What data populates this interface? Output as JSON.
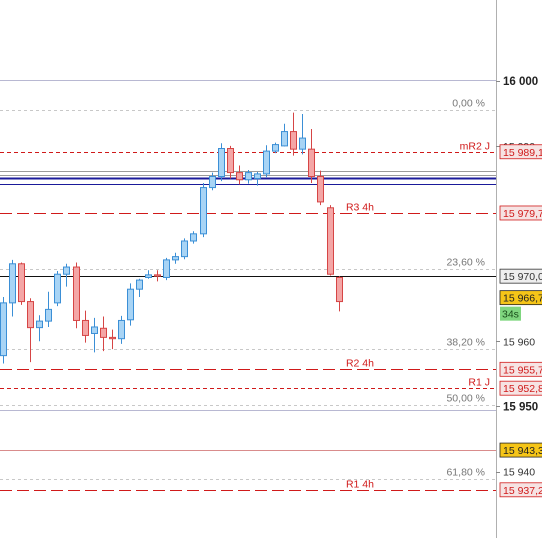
{
  "chart_data": {
    "type": "candlestick",
    "ylim": [
      15929.8,
      16012.4
    ],
    "y_ticks": [
      {
        "value": 16000,
        "label": "16 000",
        "major": true
      },
      {
        "value": 15990,
        "label": "15 990",
        "major": false
      },
      {
        "value": 15960,
        "label": "15 960",
        "major": false
      },
      {
        "value": 15950,
        "label": "15 950",
        "major": true
      },
      {
        "value": 15940,
        "label": "15 940",
        "major": false
      }
    ],
    "price_tags": [
      {
        "value": 15989.1,
        "label": "15 989,1",
        "color": "#d01a1a",
        "bg": "#f6e3e3"
      },
      {
        "value": 15979.7,
        "label": "15 979,7",
        "color": "#d01a1a",
        "bg": "#f6e3e3"
      },
      {
        "value": 15970.0,
        "label": "15 970,0",
        "color": "#333333",
        "bg": "#eeeeee"
      },
      {
        "value": 15966.7,
        "label": "15 966,7",
        "color": "#222222",
        "bg": "#f5c518"
      },
      {
        "value": 15955.7,
        "label": "15 955,7",
        "color": "#d01a1a",
        "bg": "#f6e3e3"
      },
      {
        "value": 15952.8,
        "label": "15 952,8",
        "color": "#d01a1a",
        "bg": "#f6e3e3"
      },
      {
        "value": 15943.3,
        "label": "15 943,3",
        "color": "#222222",
        "bg": "#f5c518"
      },
      {
        "value": 15937.2,
        "label": "15 937,2",
        "color": "#d01a1a",
        "bg": "#f6e3e3"
      }
    ],
    "countdown": {
      "label": "34s"
    },
    "fib_levels": [
      {
        "label": "0,00 %",
        "value": 15995.5
      },
      {
        "label": "23,60 %",
        "value": 15971.1
      },
      {
        "label": "38,20 %",
        "value": 15958.8
      },
      {
        "label": "50,00 %",
        "value": 15950.2
      },
      {
        "label": "61,80 %",
        "value": 15938.8
      }
    ],
    "pivot_levels": [
      {
        "label": "mR2 J",
        "value": 15989.1
      },
      {
        "label": "R3 4h",
        "value": 15979.7
      },
      {
        "label": "R2 4h",
        "value": 15955.7
      },
      {
        "label": "R1 J",
        "value": 15952.8
      },
      {
        "label": "R1 4h",
        "value": 15937.2
      }
    ],
    "horizontal_lines": [
      {
        "name": "grey-line-upper",
        "value": 16000.1,
        "color": "#b8b8d2"
      },
      {
        "name": "grey-double-1",
        "value": 15986.1,
        "color": "#9a9a9a"
      },
      {
        "name": "grey-double-2",
        "value": 15985.6,
        "color": "#9a9a9a"
      },
      {
        "name": "navy-line",
        "value": 15985.1,
        "color": "#1a1a9a"
      },
      {
        "name": "navy-thin-line",
        "value": 15984.1,
        "color": "#1a1a9a"
      },
      {
        "name": "black-line",
        "value": 15970.0,
        "color": "#111111"
      },
      {
        "name": "grey-line-lower",
        "value": 15949.5,
        "color": "#b8b8d2"
      },
      {
        "name": "red-solid-line",
        "value": 15943.3,
        "color": "#d98c8c"
      }
    ],
    "candles": [
      {
        "o": 15957.8,
        "h": 15966.8,
        "l": 15956.6,
        "c": 15965.9
      },
      {
        "o": 15965.9,
        "h": 15972.5,
        "l": 15963.8,
        "c": 15971.9
      },
      {
        "o": 15971.9,
        "h": 15972.1,
        "l": 15965.6,
        "c": 15966.1
      },
      {
        "o": 15966.1,
        "h": 15966.6,
        "l": 15956.8,
        "c": 15962.1
      },
      {
        "o": 15962.1,
        "h": 15964.0,
        "l": 15960.0,
        "c": 15963.1
      },
      {
        "o": 15963.1,
        "h": 15967.6,
        "l": 15962.2,
        "c": 15964.9
      },
      {
        "o": 15965.9,
        "h": 15970.8,
        "l": 15965.4,
        "c": 15970.3
      },
      {
        "o": 15970.3,
        "h": 15971.9,
        "l": 15968.4,
        "c": 15971.4
      },
      {
        "o": 15971.4,
        "h": 15972.1,
        "l": 15962.0,
        "c": 15963.2
      },
      {
        "o": 15963.2,
        "h": 15964.7,
        "l": 15959.8,
        "c": 15960.9
      },
      {
        "o": 15961.2,
        "h": 15963.6,
        "l": 15958.3,
        "c": 15962.2
      },
      {
        "o": 15962.0,
        "h": 15963.8,
        "l": 15958.5,
        "c": 15960.6
      },
      {
        "o": 15960.6,
        "h": 15961.8,
        "l": 15958.8,
        "c": 15960.4
      },
      {
        "o": 15960.4,
        "h": 15963.9,
        "l": 15959.6,
        "c": 15963.2
      },
      {
        "o": 15963.3,
        "h": 15968.9,
        "l": 15962.4,
        "c": 15968.0
      },
      {
        "o": 15968.0,
        "h": 15969.6,
        "l": 15966.8,
        "c": 15969.4
      },
      {
        "o": 15969.8,
        "h": 15970.9,
        "l": 15969.6,
        "c": 15970.2
      },
      {
        "o": 15970.2,
        "h": 15970.9,
        "l": 15969.2,
        "c": 15970.0
      },
      {
        "o": 15969.8,
        "h": 15972.8,
        "l": 15969.4,
        "c": 15972.5
      },
      {
        "o": 15972.5,
        "h": 15973.6,
        "l": 15971.9,
        "c": 15973.0
      },
      {
        "o": 15973.0,
        "h": 15975.8,
        "l": 15972.6,
        "c": 15975.4
      },
      {
        "o": 15975.4,
        "h": 15976.9,
        "l": 15975.0,
        "c": 15976.5
      },
      {
        "o": 15976.5,
        "h": 15984.3,
        "l": 15976.0,
        "c": 15983.6
      },
      {
        "o": 15983.6,
        "h": 15985.9,
        "l": 15983.2,
        "c": 15985.3
      },
      {
        "o": 15985.3,
        "h": 15990.4,
        "l": 15984.6,
        "c": 15989.6
      },
      {
        "o": 15989.6,
        "h": 15990.0,
        "l": 15985.0,
        "c": 15985.9
      },
      {
        "o": 15985.9,
        "h": 15987.0,
        "l": 15984.1,
        "c": 15984.8
      },
      {
        "o": 15984.8,
        "h": 15986.3,
        "l": 15984.2,
        "c": 15985.9
      },
      {
        "o": 15985.0,
        "h": 15986.0,
        "l": 15983.9,
        "c": 15985.7
      },
      {
        "o": 15985.7,
        "h": 15990.1,
        "l": 15985.2,
        "c": 15989.2
      },
      {
        "o": 15989.2,
        "h": 15990.5,
        "l": 15988.9,
        "c": 15990.2
      },
      {
        "o": 15990.0,
        "h": 15993.4,
        "l": 15989.9,
        "c": 15992.2
      },
      {
        "o": 15992.2,
        "h": 15995.1,
        "l": 15988.5,
        "c": 15989.5
      },
      {
        "o": 15989.5,
        "h": 15994.9,
        "l": 15988.7,
        "c": 15991.2
      },
      {
        "o": 15989.5,
        "h": 15992.6,
        "l": 15984.3,
        "c": 15985.3
      },
      {
        "o": 15985.3,
        "h": 15986.2,
        "l": 15980.9,
        "c": 15981.4
      },
      {
        "o": 15980.5,
        "h": 15980.9,
        "l": 15970.1,
        "c": 15970.3
      },
      {
        "o": 15969.8,
        "h": 15970.0,
        "l": 15964.6,
        "c": 15966.1
      }
    ]
  }
}
